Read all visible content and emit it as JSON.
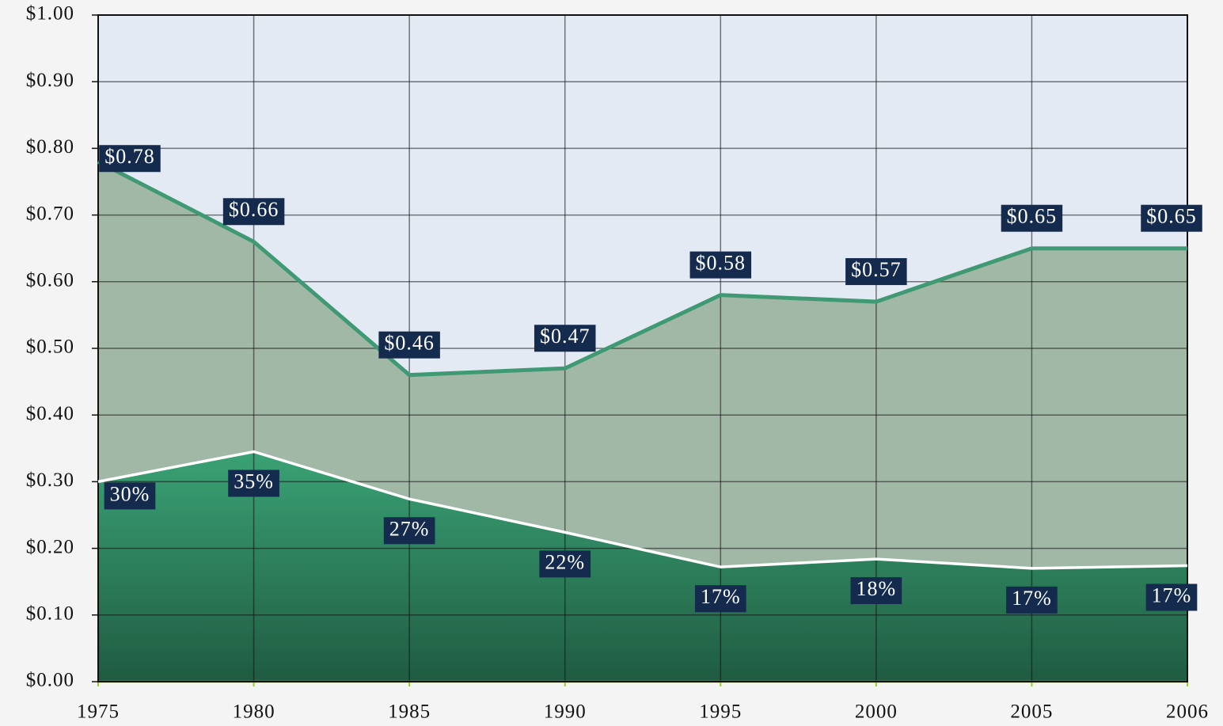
{
  "chart_data": {
    "type": "area",
    "categories": [
      "1975",
      "1980",
      "1985",
      "1990",
      "1995",
      "2000",
      "2005",
      "2006"
    ],
    "series": [
      {
        "color": "#3f9a74",
        "values": [
          0.78,
          0.66,
          0.46,
          0.47,
          0.58,
          0.57,
          0.65,
          0.65
        ],
        "value_labels": [
          "$0.78",
          "$0.66",
          "$0.46",
          "$0.47",
          "$0.58",
          "$0.57",
          "$0.65",
          "$0.65"
        ]
      },
      {
        "color": "#ffffff",
        "values": [
          0.3,
          0.345,
          0.274,
          0.224,
          0.172,
          0.184,
          0.17,
          0.174
        ],
        "value_labels": [
          "30%",
          "35%",
          "27%",
          "22%",
          "17%",
          "18%",
          "17%",
          "17%"
        ]
      }
    ],
    "ylim": [
      0,
      1
    ],
    "yticks": [
      {
        "value": 0,
        "label": "$0.00"
      },
      {
        "value": 0.1,
        "label": "$0.10"
      },
      {
        "value": 0.2,
        "label": "$0.20"
      },
      {
        "value": 0.3,
        "label": "$0.30"
      },
      {
        "value": 0.4,
        "label": "$0.40"
      },
      {
        "value": 0.5,
        "label": "$0.50"
      },
      {
        "value": 0.6,
        "label": "$0.60"
      },
      {
        "value": 0.7,
        "label": "$0.70"
      },
      {
        "value": 0.8,
        "label": "$0.80"
      },
      {
        "value": 0.9,
        "label": "$0.90"
      },
      {
        "value": 1,
        "label": "$1.00"
      }
    ],
    "grid": true
  }
}
